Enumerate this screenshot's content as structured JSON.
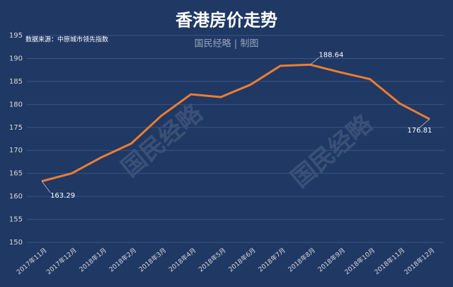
{
  "chart_data": {
    "type": "line",
    "title": "香港房价走势",
    "subtitle": "国民经略 | 制图",
    "source": "数据来源：中原城市领先指数",
    "watermark": "国民经略",
    "categories": [
      "2017年11月",
      "2017年12月",
      "2018年1月",
      "2018年2月",
      "2018年3月",
      "2018年4月",
      "2018年5月",
      "2018年6月",
      "2018年7月",
      "2018年8月",
      "2018年9月",
      "2018年10月",
      "2018年11月",
      "2018年12月"
    ],
    "series": [
      {
        "name": "香港房价",
        "color": "#ed7d31",
        "values": [
          163.29,
          165,
          168.5,
          171.5,
          177.5,
          182.2,
          181.6,
          184.3,
          188.4,
          188.64,
          187,
          185.5,
          180.2,
          176.81
        ],
        "value_labels": [
          "163.29",
          null,
          null,
          null,
          null,
          null,
          null,
          null,
          null,
          "188.64",
          null,
          null,
          null,
          "176.81"
        ]
      }
    ],
    "ylim": [
      150,
      195
    ],
    "yticks": [
      150,
      155,
      160,
      165,
      170,
      175,
      180,
      185,
      190,
      195
    ],
    "grid": true
  }
}
